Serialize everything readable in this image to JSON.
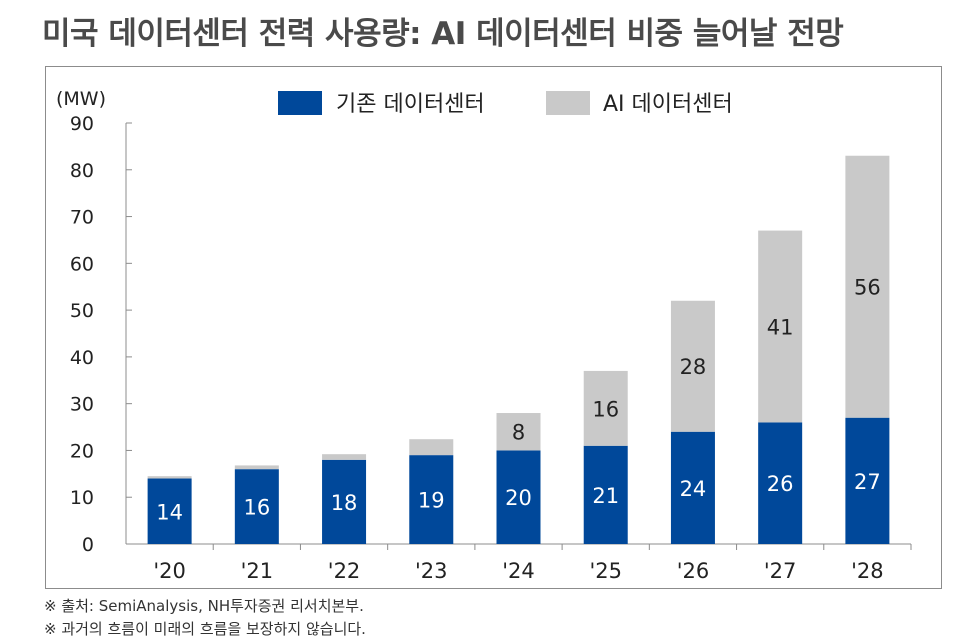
{
  "title": "미국 데이터센터 전력 사용량: AI 데이터센터 비중 늘어날 전망",
  "chart_data": {
    "type": "bar",
    "stacked": true,
    "unit_label": "(MW)",
    "categories": [
      "'20",
      "'21",
      "'22",
      "'23",
      "'24",
      "'25",
      "'26",
      "'27",
      "'28"
    ],
    "series": [
      {
        "name": "기존 데이터센터",
        "color": "#00489a",
        "values": [
          14,
          16,
          18,
          19,
          20,
          21,
          24,
          26,
          27
        ],
        "labels": [
          "14",
          "16",
          "18",
          "19",
          "20",
          "21",
          "24",
          "26",
          "27"
        ]
      },
      {
        "name": "AI 데이터센터",
        "color": "#c9c9c9",
        "values": [
          0.5,
          0.8,
          1.2,
          3.4,
          8,
          16,
          28,
          41,
          56
        ],
        "labels": [
          "",
          "",
          "",
          "",
          "8",
          "16",
          "28",
          "41",
          "56"
        ]
      }
    ],
    "ylim": [
      0,
      90
    ],
    "yticks": [
      "0",
      "10",
      "20",
      "30",
      "40",
      "50",
      "60",
      "70",
      "80",
      "90"
    ],
    "legend_position": "top-center",
    "grid": false
  },
  "footnotes": [
    "※ 출처: SemiAnalysis, NH투자증권 리서치본부.",
    "※ 과거의 흐름이 미래의 흐름을 보장하지 않습니다."
  ]
}
